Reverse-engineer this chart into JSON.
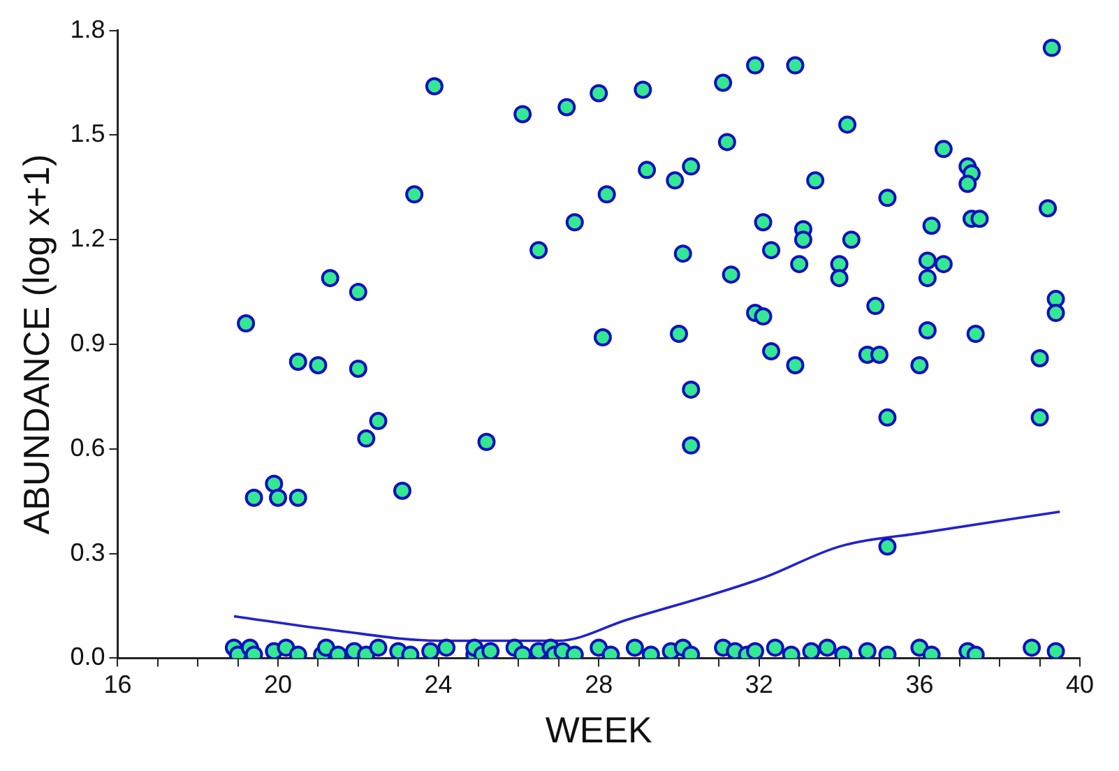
{
  "chart_data": {
    "type": "scatter",
    "xlabel": "WEEK",
    "ylabel": "ABUNDANCE (log x+1)",
    "xlim": [
      16,
      40
    ],
    "ylim": [
      0,
      1.8
    ],
    "xticks": [
      16,
      {
        "value": 17,
        "label": null
      },
      {
        "value": 18,
        "label": null
      },
      {
        "value": 19,
        "label": null
      },
      20,
      {
        "value": 21,
        "label": null
      },
      {
        "value": 22,
        "label": null
      },
      {
        "value": 23,
        "label": null
      },
      24,
      {
        "value": 25,
        "label": null
      },
      {
        "value": 26,
        "label": null
      },
      {
        "value": 27,
        "label": null
      },
      28,
      {
        "value": 29,
        "label": null
      },
      {
        "value": 30,
        "label": null
      },
      {
        "value": 31,
        "label": null
      },
      32,
      {
        "value": 33,
        "label": null
      },
      {
        "value": 34,
        "label": null
      },
      {
        "value": 35,
        "label": null
      },
      36,
      {
        "value": 37,
        "label": null
      },
      {
        "value": 38,
        "label": null
      },
      {
        "value": 39,
        "label": null
      },
      40
    ],
    "yticks": [
      {
        "value": 0,
        "label": "0.0"
      },
      0.3,
      0.6,
      0.9,
      1.2,
      1.5,
      1.8
    ],
    "grid": false,
    "legend": false,
    "series": [
      {
        "marker": "circle",
        "color": "#33e890",
        "x": [
          19.2,
          21.3,
          22.0,
          20.5,
          21.0,
          22.0,
          22.5,
          22.2,
          19.4,
          19.9,
          20.0,
          20.5,
          23.1,
          25.2,
          28.1,
          26.5,
          27.4,
          23.9,
          23.4,
          26.1,
          27.2,
          28.0,
          29.1,
          31.1,
          31.9,
          32.9,
          39.3,
          34.2,
          31.2,
          36.6,
          37.2,
          37.3,
          37.2,
          29.2,
          30.3,
          29.9,
          33.4,
          28.2,
          35.2,
          39.2,
          32.1,
          33.1,
          36.3,
          37.3,
          37.5,
          33.1,
          34.3,
          30.1,
          32.3,
          33.0,
          34.0,
          34.0,
          31.3,
          36.2,
          36.6,
          36.2,
          34.9,
          39.4,
          39.4,
          31.9,
          32.1,
          30.0,
          36.2,
          37.4,
          32.3,
          34.7,
          35.0,
          32.9,
          36.0,
          39.0,
          30.3,
          30.3,
          35.2,
          39.0,
          35.2,
          18.9,
          19.0,
          19.3,
          19.4,
          19.9,
          20.2,
          20.5,
          21.1,
          21.2,
          21.5,
          21.9,
          22.2,
          22.5,
          23.0,
          23.3,
          23.8,
          24.2,
          24.9,
          24.9,
          25.1,
          25.3,
          25.9,
          26.1,
          26.5,
          26.8,
          26.9,
          27.1,
          27.4,
          28.0,
          28.3,
          28.9,
          29.3,
          29.8,
          30.1,
          30.3,
          31.1,
          31.4,
          31.7,
          31.9,
          32.4,
          32.8,
          33.3,
          33.7,
          34.1,
          34.7,
          35.2,
          36.0,
          36.3,
          37.2,
          37.4,
          38.8,
          39.4
        ],
        "values": [
          0.96,
          1.09,
          1.05,
          0.85,
          0.84,
          0.83,
          0.68,
          0.63,
          0.46,
          0.5,
          0.46,
          0.46,
          0.48,
          0.62,
          0.92,
          1.17,
          1.25,
          1.64,
          1.33,
          1.56,
          1.58,
          1.62,
          1.63,
          1.65,
          1.7,
          1.7,
          1.75,
          1.53,
          1.48,
          1.46,
          1.41,
          1.39,
          1.36,
          1.4,
          1.41,
          1.37,
          1.37,
          1.33,
          1.32,
          1.29,
          1.25,
          1.23,
          1.24,
          1.26,
          1.26,
          1.2,
          1.2,
          1.16,
          1.17,
          1.13,
          1.13,
          1.09,
          1.1,
          1.14,
          1.13,
          1.09,
          1.01,
          1.03,
          0.99,
          0.99,
          0.98,
          0.93,
          0.94,
          0.93,
          0.88,
          0.87,
          0.87,
          0.84,
          0.84,
          0.86,
          0.77,
          0.61,
          0.69,
          0.69,
          0.32,
          0.03,
          0.01,
          0.03,
          0.01,
          0.02,
          0.03,
          0.01,
          0.01,
          0.03,
          0.01,
          0.02,
          0.01,
          0.03,
          0.02,
          0.01,
          0.02,
          0.03,
          0.01,
          0.03,
          0.01,
          0.02,
          0.03,
          0.01,
          0.02,
          0.03,
          0.01,
          0.02,
          0.01,
          0.03,
          0.01,
          0.03,
          0.01,
          0.02,
          0.03,
          0.01,
          0.03,
          0.02,
          0.01,
          0.02,
          0.03,
          0.01,
          0.02,
          0.03,
          0.01,
          0.02,
          0.01,
          0.03,
          0.01,
          0.02,
          0.01,
          0.03,
          0.02
        ]
      },
      {
        "type": "line",
        "marker": "none",
        "color": "#2222cc",
        "x": [
          18.9,
          21.4,
          24.0,
          25.5,
          27.0,
          28.7,
          32.1,
          34.0,
          36.1,
          39.5
        ],
        "values": [
          0.12,
          0.08,
          0.05,
          0.05,
          0.05,
          0.11,
          0.23,
          0.32,
          0.36,
          0.42
        ]
      }
    ]
  }
}
